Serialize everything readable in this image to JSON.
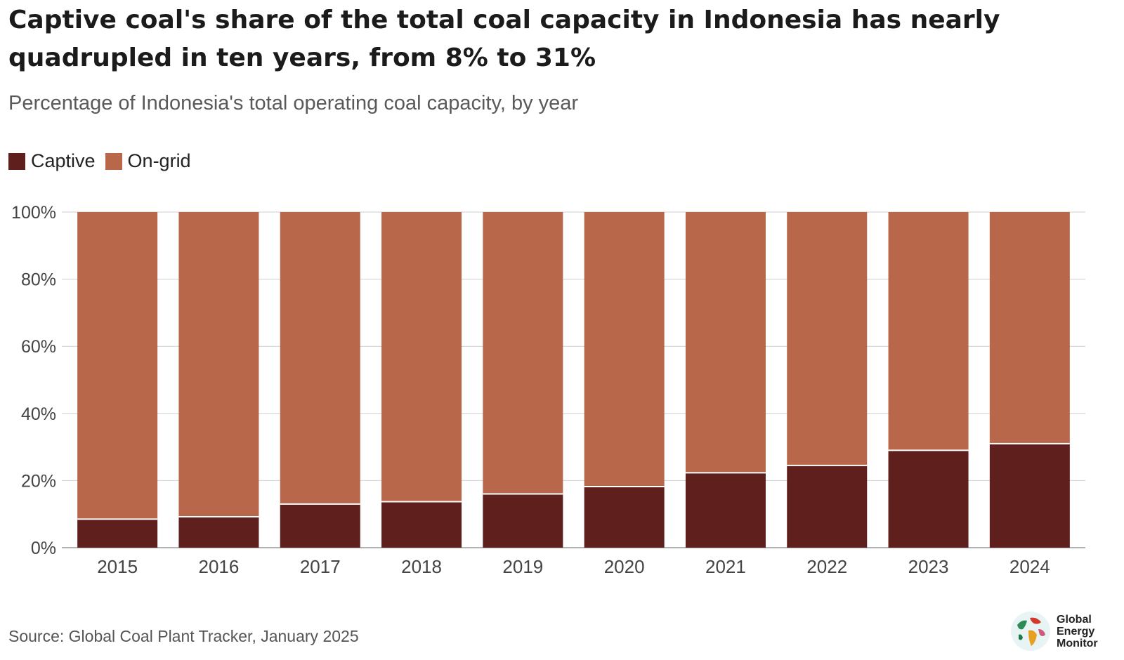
{
  "title": "Captive coal's share of the total coal capacity in Indonesia has nearly quadrupled in ten years, from 8% to 31%",
  "subtitle": "Percentage of Indonesia's total operating coal capacity, by year",
  "legend": [
    {
      "name": "Captive",
      "color": "#5e1f1d"
    },
    {
      "name": "On-grid",
      "color": "#b8674a"
    }
  ],
  "source": "Source: Global Coal Plant Tracker, January 2025",
  "logo": {
    "line1": "Global",
    "line2": "Energy",
    "line3": "Monitor",
    "icon": "globe-icon"
  },
  "chart_data": {
    "type": "bar",
    "stacked": true,
    "categories": [
      "2015",
      "2016",
      "2017",
      "2018",
      "2019",
      "2020",
      "2021",
      "2022",
      "2023",
      "2024"
    ],
    "series": [
      {
        "name": "Captive",
        "color": "#5e1f1d",
        "values": [
          8.5,
          9.2,
          13,
          13.7,
          16,
          18.2,
          22.3,
          24.5,
          29,
          31
        ]
      },
      {
        "name": "On-grid",
        "color": "#b8674a",
        "values": [
          91.5,
          90.8,
          87,
          86.3,
          84,
          81.8,
          77.7,
          75.5,
          71,
          69
        ]
      }
    ],
    "yticks": [
      "0%",
      "20%",
      "40%",
      "60%",
      "80%",
      "100%"
    ],
    "ylim": [
      0,
      100
    ],
    "grid": true,
    "legend_position": "top-left"
  }
}
